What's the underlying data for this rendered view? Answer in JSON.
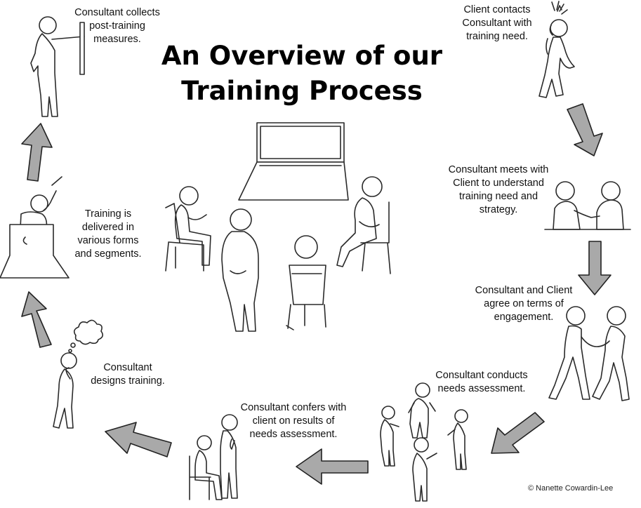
{
  "title": {
    "line1": "An Overview of our",
    "line2": "Training Process"
  },
  "steps": [
    {
      "id": "client-contact",
      "lines": [
        "Client contacts",
        "Consultant with",
        "training need."
      ]
    },
    {
      "id": "consultant-meets",
      "lines": [
        "Consultant meets with",
        "Client to understand",
        "training need and",
        "strategy."
      ]
    },
    {
      "id": "agree-terms",
      "lines": [
        "Consultant and Client",
        "agree on terms of",
        "engagement."
      ]
    },
    {
      "id": "needs-assessment",
      "lines": [
        "Consultant conducts",
        "needs assessment."
      ]
    },
    {
      "id": "confers-results",
      "lines": [
        "Consultant confers with",
        "client on results of",
        "needs assessment."
      ]
    },
    {
      "id": "designs-training",
      "lines": [
        "Consultant",
        "designs training."
      ]
    },
    {
      "id": "training-delivered",
      "lines": [
        "Training is",
        "delivered in",
        "various forms",
        "and segments."
      ]
    },
    {
      "id": "post-training",
      "lines": [
        "Consultant collects",
        "post-training",
        "measures."
      ]
    }
  ],
  "copyright": "© Nanette Cowardin-Lee",
  "colors": {
    "arrow_fill": "#a9a9a9",
    "line": "#2a2a2a",
    "background": "#ffffff"
  }
}
